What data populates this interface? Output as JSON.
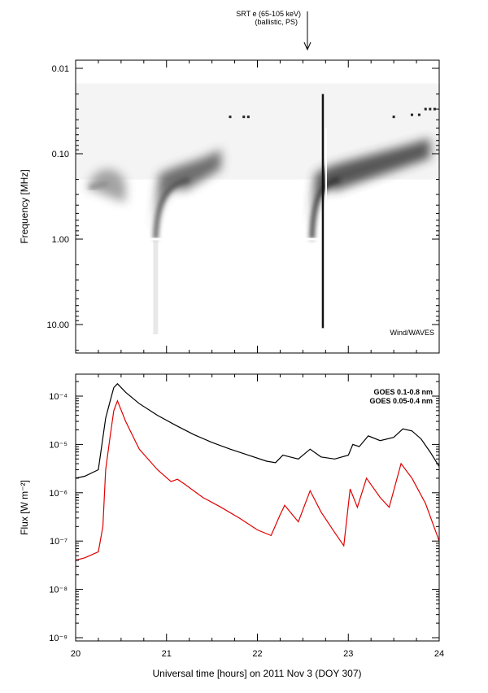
{
  "annotation": {
    "line1": "SRT e (65-105 keV)",
    "line2": "(ballistic, PS)",
    "time_hours": 22.55
  },
  "chart_data": [
    {
      "type": "heatmap",
      "instrument_label": "Wind/WAVES",
      "ylabel": "Frequency [MHz]",
      "y_scale": "log",
      "y_inverted": true,
      "ylim": [
        0.01,
        20
      ],
      "xlim": [
        20,
        24
      ],
      "yticks": [
        {
          "value": 0.01,
          "label": "0.01"
        },
        {
          "value": 0.1,
          "label": "0.10"
        },
        {
          "value": 1.0,
          "label": "1.00"
        },
        {
          "value": 10.0,
          "label": "10.00"
        }
      ],
      "bursts": [
        {
          "start_time": 20.15,
          "start_freq": 0.25,
          "peak_time": 20.3,
          "peak_freq": 0.22,
          "end_time": 20.55,
          "end_freq": 0.3,
          "intensity": 0.55
        },
        {
          "start_time": 20.88,
          "start_freq": 1.0,
          "peak_time": 21.2,
          "peak_freq": 0.2,
          "end_time": 21.6,
          "end_freq": 0.12,
          "intensity": 0.85
        },
        {
          "start_time": 22.6,
          "start_freq": 1.0,
          "peak_time": 22.85,
          "peak_freq": 0.2,
          "end_time": 23.9,
          "end_freq": 0.09,
          "intensity": 1.0
        }
      ]
    },
    {
      "type": "line",
      "ylabel": "Flux [W m⁻²]",
      "xlabel": "Universal time [hours] on 2011 Nov 3 (DOY 307)",
      "y_scale": "log",
      "ylim": [
        1e-09,
        0.0002
      ],
      "xlim": [
        20,
        24
      ],
      "xticks": [
        {
          "value": 20,
          "label": "20"
        },
        {
          "value": 21,
          "label": "21"
        },
        {
          "value": 22,
          "label": "22"
        },
        {
          "value": 23,
          "label": "23"
        },
        {
          "value": 24,
          "label": "24"
        }
      ],
      "yticks": [
        {
          "value": 0.0001,
          "label": "10⁻⁴"
        },
        {
          "value": 1e-05,
          "label": "10⁻⁵"
        },
        {
          "value": 1e-06,
          "label": "10⁻⁶"
        },
        {
          "value": 1e-07,
          "label": "10⁻⁷"
        },
        {
          "value": 1e-08,
          "label": "10⁻⁸"
        },
        {
          "value": 1e-09,
          "label": "10⁻⁹"
        }
      ],
      "series": [
        {
          "name": "GOES 0.1-0.8 nm",
          "color": "#000000",
          "points": [
            [
              20.0,
              2e-06
            ],
            [
              20.1,
              2.2e-06
            ],
            [
              20.25,
              3e-06
            ],
            [
              20.33,
              3.5e-05
            ],
            [
              20.38,
              8e-05
            ],
            [
              20.42,
              0.00015
            ],
            [
              20.46,
              0.00018
            ],
            [
              20.55,
              0.00012
            ],
            [
              20.7,
              7e-05
            ],
            [
              20.9,
              4e-05
            ],
            [
              21.1,
              2.5e-05
            ],
            [
              21.3,
              1.6e-05
            ],
            [
              21.5,
              1.1e-05
            ],
            [
              21.7,
              8e-06
            ],
            [
              21.9,
              6e-06
            ],
            [
              22.1,
              4.5e-06
            ],
            [
              22.2,
              4.2e-06
            ],
            [
              22.28,
              6e-06
            ],
            [
              22.36,
              5.5e-06
            ],
            [
              22.45,
              5e-06
            ],
            [
              22.58,
              8e-06
            ],
            [
              22.7,
              5.5e-06
            ],
            [
              22.85,
              5e-06
            ],
            [
              23.0,
              6e-06
            ],
            [
              23.05,
              1e-05
            ],
            [
              23.12,
              9e-06
            ],
            [
              23.22,
              1.5e-05
            ],
            [
              23.35,
              1.2e-05
            ],
            [
              23.5,
              1.4e-05
            ],
            [
              23.6,
              2.1e-05
            ],
            [
              23.7,
              1.9e-05
            ],
            [
              23.8,
              1.3e-05
            ],
            [
              23.9,
              7e-06
            ],
            [
              24.0,
              3.5e-06
            ]
          ]
        },
        {
          "name": "GOES 0.05-0.4 nm",
          "color": "#e00000",
          "points": [
            [
              20.0,
              4e-08
            ],
            [
              20.1,
              4.5e-08
            ],
            [
              20.25,
              6e-08
            ],
            [
              20.3,
              2e-07
            ],
            [
              20.33,
              3e-06
            ],
            [
              20.38,
              1.5e-05
            ],
            [
              20.42,
              5e-05
            ],
            [
              20.46,
              8e-05
            ],
            [
              20.55,
              3e-05
            ],
            [
              20.7,
              8e-06
            ],
            [
              20.9,
              3e-06
            ],
            [
              21.05,
              1.7e-06
            ],
            [
              21.12,
              1.9e-06
            ],
            [
              21.2,
              1.5e-06
            ],
            [
              21.4,
              8e-07
            ],
            [
              21.6,
              5e-07
            ],
            [
              21.8,
              3e-07
            ],
            [
              22.0,
              1.7e-07
            ],
            [
              22.15,
              1.3e-07
            ],
            [
              22.25,
              3.5e-07
            ],
            [
              22.3,
              5.5e-07
            ],
            [
              22.45,
              2.5e-07
            ],
            [
              22.58,
              1.1e-06
            ],
            [
              22.7,
              4e-07
            ],
            [
              22.85,
              1.5e-07
            ],
            [
              22.95,
              8e-08
            ],
            [
              23.02,
              1.2e-06
            ],
            [
              23.1,
              5e-07
            ],
            [
              23.2,
              2e-06
            ],
            [
              23.35,
              8e-07
            ],
            [
              23.45,
              5e-07
            ],
            [
              23.58,
              4e-06
            ],
            [
              23.7,
              2e-06
            ],
            [
              23.85,
              6e-07
            ],
            [
              24.0,
              1e-07
            ]
          ]
        }
      ]
    }
  ]
}
